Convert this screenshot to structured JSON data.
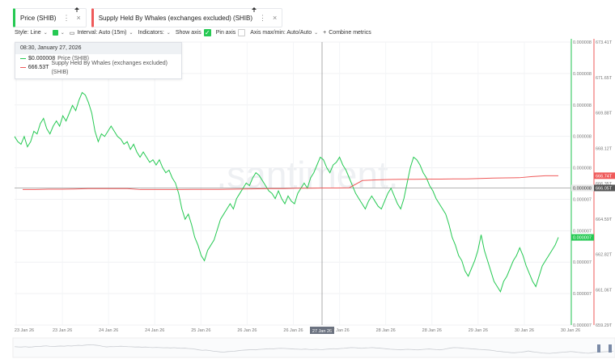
{
  "tabs": [
    {
      "label": "Price (SHIB)",
      "color": "#26c953"
    },
    {
      "label": "Supply Held By Whales (exchanges excluded) (SHIB)",
      "color": "#ef5a5a"
    }
  ],
  "toolbar": {
    "style_label": "Style: Line",
    "interval_label": "Interval: Auto (15m)",
    "indicators_label": "Indicators:",
    "show_axis_label": "Show axis",
    "pin_axis_label": "Pin axis",
    "axis_maxmin_label": "Axis max/min: Auto/Auto",
    "combine_label": "Combine metrics"
  },
  "tooltip": {
    "time": "08:30, January 27, 2026",
    "rows": [
      {
        "value": "$0.000008",
        "label": "Price (SHIB)"
      },
      {
        "value": "666.53T",
        "label": "Supply Held By Whales (exchanges excluded) (SHIB)"
      }
    ]
  },
  "watermark": ".santiment.",
  "chart_data": {
    "type": "line",
    "x_ticks": [
      "23 Jan 26",
      "23 Jan 26",
      "24 Jan 26",
      "24 Jan 26",
      "25 Jan 26",
      "26 Jan 26",
      "26 Jan 26",
      "27 Jan 26",
      "28 Jan 26",
      "28 Jan 26",
      "29 Jan 26",
      "30 Jan 26",
      "30 Jan 26"
    ],
    "crosshair_x_label": "27 Jan 26",
    "price_axis_ticks": [
      "0.000008",
      "0.000008",
      "0.000008",
      "0.000008",
      "0.000008",
      "0.000007",
      "0.000007",
      "0.000007",
      "0.000007",
      "0.000007"
    ],
    "supply_axis_ticks": [
      "673.41T",
      "671.65T",
      "669.88T",
      "668.12T",
      "666.35T",
      "664.59T",
      "662.82T",
      "661.06T",
      "659.29T"
    ],
    "supply_range": [
      659.29,
      673.41
    ],
    "current_price_label": "0.000008",
    "current_price_label_lower": "0.000007",
    "current_supply_label": "666.74T",
    "crosshair_supply_label": "666.05T",
    "series": [
      {
        "name": "Price (SHIB)",
        "color": "#26c953",
        "axis": "price",
        "values": [
          66,
          64,
          63,
          66,
          62,
          64,
          68,
          67,
          71,
          73,
          69,
          67,
          70,
          72,
          70,
          74,
          72,
          75,
          78,
          76,
          80,
          83,
          82,
          79,
          75,
          68,
          64,
          67,
          66,
          68,
          70,
          68,
          66,
          65,
          63,
          64,
          61,
          63,
          60,
          58,
          60,
          58,
          56,
          57,
          55,
          57,
          54,
          52,
          53,
          50,
          48,
          44,
          38,
          34,
          36,
          32,
          27,
          24,
          20,
          18,
          22,
          24,
          26,
          30,
          34,
          36,
          38,
          40,
          38,
          42,
          44,
          46,
          48,
          47,
          50,
          52,
          51,
          49,
          47,
          45,
          44,
          42,
          45,
          42,
          40,
          43,
          41,
          40,
          44,
          46,
          48,
          46,
          50,
          52,
          55,
          58,
          57,
          54,
          52,
          55,
          56,
          58,
          55,
          53,
          50,
          47,
          44,
          42,
          40,
          38,
          41,
          43,
          41,
          39,
          38,
          41,
          44,
          46,
          43,
          40,
          38,
          42,
          48,
          54,
          58,
          57,
          55,
          52,
          50,
          47,
          45,
          42,
          40,
          38,
          36,
          32,
          27,
          24,
          20,
          18,
          14,
          12,
          15,
          18,
          22,
          28,
          22,
          18,
          14,
          10,
          8,
          6,
          10,
          12,
          15,
          18,
          20,
          23,
          20,
          16,
          13,
          10,
          8,
          12,
          16,
          18,
          20,
          22,
          24,
          27
        ]
      },
      {
        "name": "Supply Held By Whales (exchanges excluded) (SHIB)",
        "color": "#ef5a5a",
        "axis": "supply",
        "values": [
          666.05,
          666.05,
          666.07,
          666.07,
          666.08,
          666.1,
          666.1,
          666.1,
          666.1,
          666.05,
          666.05,
          666.05,
          666.05,
          666.06,
          666.06,
          666.06,
          666.07,
          666.08,
          666.09,
          666.1,
          666.1,
          666.12,
          666.12,
          666.13,
          666.13,
          666.14,
          666.5,
          666.53,
          666.55,
          666.56,
          666.56,
          666.57,
          666.57,
          666.58,
          666.58,
          666.6,
          666.62,
          666.63,
          666.64,
          666.7,
          666.74,
          666.74
        ]
      }
    ]
  }
}
